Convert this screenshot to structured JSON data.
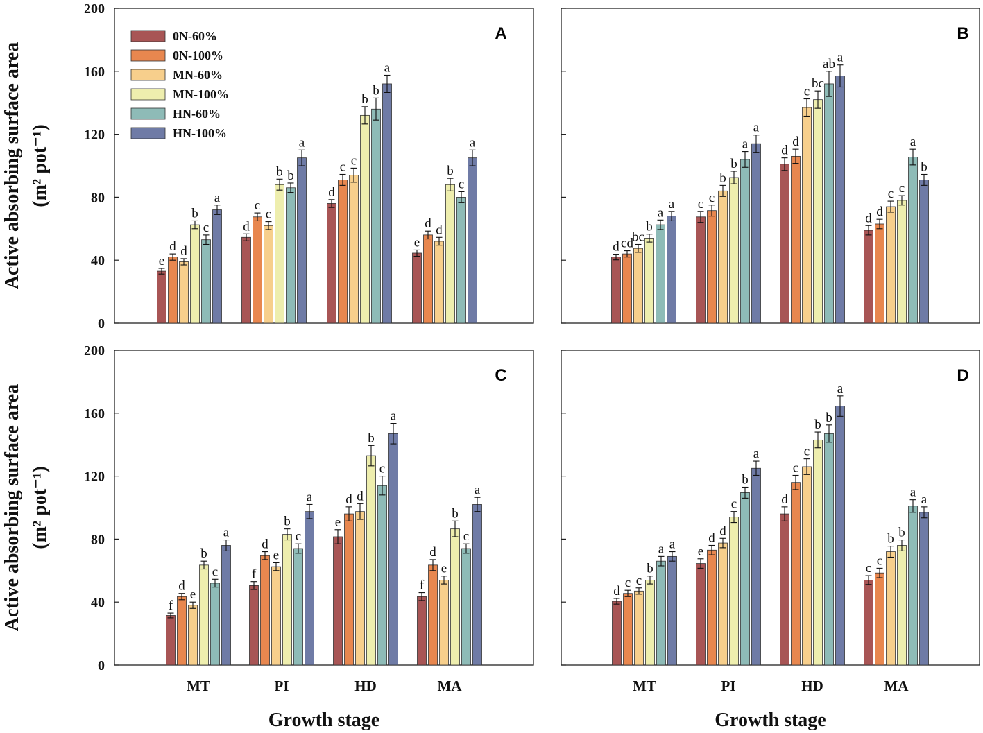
{
  "ylabel_line1": "Active absorbing surface area",
  "ylabel_unit": "(m² pot⁻¹)",
  "legend": [
    {
      "name": "0N-60%",
      "color": "#A85555"
    },
    {
      "name": "0N-100%",
      "color": "#E8874F"
    },
    {
      "name": "MN-60%",
      "color": "#F7CF8C"
    },
    {
      "name": "MN-100%",
      "color": "#EEEEAE"
    },
    {
      "name": "HN-60%",
      "color": "#8EBBB7"
    },
    {
      "name": "HN-100%",
      "color": "#6F7BA6"
    }
  ],
  "chart_data": [
    {
      "type": "bar",
      "panel": "A",
      "categories": [
        "MT",
        "PI",
        "HD",
        "MA"
      ],
      "ylim": [
        0,
        200
      ],
      "yticks": [
        0,
        40,
        80,
        120,
        160,
        200
      ],
      "xlabel": "",
      "ylabel": "Active absorbing surface area (m² pot⁻¹)",
      "series": [
        {
          "name": "0N-60%",
          "values": [
            33,
            54.5,
            76,
            44.5
          ],
          "errors": [
            1.8,
            2.2,
            2.5,
            2
          ],
          "letters": [
            "e",
            "d",
            "d",
            "e"
          ]
        },
        {
          "name": "0N-100%",
          "values": [
            42,
            67.5,
            91,
            56
          ],
          "errors": [
            2,
            2.5,
            3.5,
            2.5
          ],
          "letters": [
            "d",
            "c",
            "c",
            "d"
          ]
        },
        {
          "name": "MN-60%",
          "values": [
            39,
            62,
            94,
            52
          ],
          "errors": [
            2,
            2.5,
            4.5,
            2.5
          ],
          "letters": [
            "d",
            "c",
            "c",
            "d"
          ]
        },
        {
          "name": "MN-100%",
          "values": [
            62.5,
            88,
            132,
            88
          ],
          "errors": [
            2.5,
            3.5,
            5.5,
            4
          ],
          "letters": [
            "b",
            "b",
            "b",
            "b"
          ]
        },
        {
          "name": "HN-60%",
          "values": [
            53,
            86,
            136,
            80
          ],
          "errors": [
            3,
            3,
            7,
            3.5
          ],
          "letters": [
            "c",
            "b",
            "b",
            "c"
          ]
        },
        {
          "name": "HN-100%",
          "values": [
            72,
            105,
            152,
            105
          ],
          "errors": [
            3,
            5,
            5.5,
            5
          ],
          "letters": [
            "a",
            "a",
            "a",
            "a"
          ]
        }
      ]
    },
    {
      "type": "bar",
      "panel": "B",
      "categories": [
        "MT",
        "PI",
        "HD",
        "MA"
      ],
      "ylim": [
        0,
        200
      ],
      "yticks": [
        0,
        40,
        80,
        120,
        160,
        200
      ],
      "xlabel": "",
      "ylabel": "",
      "series": [
        {
          "name": "0N-60%",
          "values": [
            42,
            67.5,
            101,
            59
          ],
          "errors": [
            1.8,
            3.5,
            4,
            3
          ],
          "letters": [
            "d",
            "c",
            "d",
            "d"
          ]
        },
        {
          "name": "0N-100%",
          "values": [
            44,
            71.5,
            106,
            63
          ],
          "errors": [
            2,
            3.5,
            4.5,
            3
          ],
          "letters": [
            "cd",
            "c",
            "d",
            "d"
          ]
        },
        {
          "name": "MN-60%",
          "values": [
            47.5,
            84,
            137,
            74
          ],
          "errors": [
            2.5,
            3.5,
            5.5,
            3.5
          ],
          "letters": [
            "bc",
            "b",
            "c",
            "c"
          ]
        },
        {
          "name": "MN-100%",
          "values": [
            54,
            92.5,
            142,
            78
          ],
          "errors": [
            2.5,
            4,
            5.5,
            3
          ],
          "letters": [
            "b",
            "b",
            "bc",
            "c"
          ]
        },
        {
          "name": "HN-60%",
          "values": [
            62.5,
            104,
            152,
            105.5
          ],
          "errors": [
            3,
            5,
            8,
            5
          ],
          "letters": [
            "a",
            "a",
            "ab",
            "a"
          ]
        },
        {
          "name": "HN-100%",
          "values": [
            68,
            114,
            157,
            91
          ],
          "errors": [
            3,
            5.5,
            7,
            3.5
          ],
          "letters": [
            "a",
            "a",
            "a",
            "b"
          ]
        }
      ]
    },
    {
      "type": "bar",
      "panel": "C",
      "categories": [
        "MT",
        "PI",
        "HD",
        "MA"
      ],
      "ylim": [
        0,
        200
      ],
      "yticks": [
        0,
        40,
        80,
        120,
        160,
        200
      ],
      "xlabel": "Growth stage",
      "ylabel": "Active absorbing surface area (m² pot⁻¹)",
      "series": [
        {
          "name": "0N-60%",
          "values": [
            31.5,
            50.5,
            81.5,
            43.5
          ],
          "errors": [
            1.5,
            2.5,
            4.5,
            2.5
          ],
          "letters": [
            "f",
            "f",
            "e",
            "f"
          ]
        },
        {
          "name": "0N-100%",
          "values": [
            43.5,
            69.5,
            96,
            63.5
          ],
          "errors": [
            2,
            2.5,
            4.5,
            3.5
          ],
          "letters": [
            "d",
            "d",
            "d",
            "d"
          ]
        },
        {
          "name": "MN-60%",
          "values": [
            38,
            62.5,
            97.5,
            54
          ],
          "errors": [
            2,
            2.5,
            5,
            2.5
          ],
          "letters": [
            "e",
            "e",
            "d",
            "e"
          ]
        },
        {
          "name": "MN-100%",
          "values": [
            63.5,
            83,
            133,
            86.5
          ],
          "errors": [
            2.5,
            3.5,
            6.5,
            5
          ],
          "letters": [
            "b",
            "b",
            "b",
            "b"
          ]
        },
        {
          "name": "HN-60%",
          "values": [
            52,
            74,
            114,
            74
          ],
          "errors": [
            2.5,
            3,
            6,
            3
          ],
          "letters": [
            "c",
            "c",
            "c",
            "c"
          ]
        },
        {
          "name": "HN-100%",
          "values": [
            76,
            97.5,
            147,
            102
          ],
          "errors": [
            3.5,
            4.5,
            6.5,
            4.5
          ],
          "letters": [
            "a",
            "a",
            "a",
            "a"
          ]
        }
      ]
    },
    {
      "type": "bar",
      "panel": "D",
      "categories": [
        "MT",
        "PI",
        "HD",
        "MA"
      ],
      "ylim": [
        0,
        200
      ],
      "yticks": [
        0,
        40,
        80,
        120,
        160,
        200
      ],
      "xlabel": "Growth stage",
      "ylabel": "",
      "series": [
        {
          "name": "0N-60%",
          "values": [
            40.5,
            64.5,
            96,
            54
          ],
          "errors": [
            1.8,
            3,
            4.5,
            2.8
          ],
          "letters": [
            "d",
            "e",
            "d",
            "c"
          ]
        },
        {
          "name": "0N-100%",
          "values": [
            45.5,
            73,
            116,
            58.5
          ],
          "errors": [
            2,
            3,
            4.5,
            3
          ],
          "letters": [
            "c",
            "d",
            "c",
            "c"
          ]
        },
        {
          "name": "MN-60%",
          "values": [
            47,
            77.5,
            126,
            72
          ],
          "errors": [
            2,
            3,
            5,
            3.5
          ],
          "letters": [
            "c",
            "d",
            "c",
            "b"
          ]
        },
        {
          "name": "MN-100%",
          "values": [
            54,
            94,
            143,
            76
          ],
          "errors": [
            2.5,
            3.5,
            5,
            3.5
          ],
          "letters": [
            "b",
            "c",
            "b",
            "b"
          ]
        },
        {
          "name": "HN-60%",
          "values": [
            66,
            109.5,
            147,
            101
          ],
          "errors": [
            3,
            3.5,
            5.5,
            4
          ],
          "letters": [
            "a",
            "b",
            "b",
            "a"
          ]
        },
        {
          "name": "HN-100%",
          "values": [
            69,
            125,
            164.5,
            97
          ],
          "errors": [
            3,
            4.5,
            6.5,
            3.5
          ],
          "letters": [
            "a",
            "a",
            "a",
            "a"
          ]
        }
      ]
    }
  ]
}
